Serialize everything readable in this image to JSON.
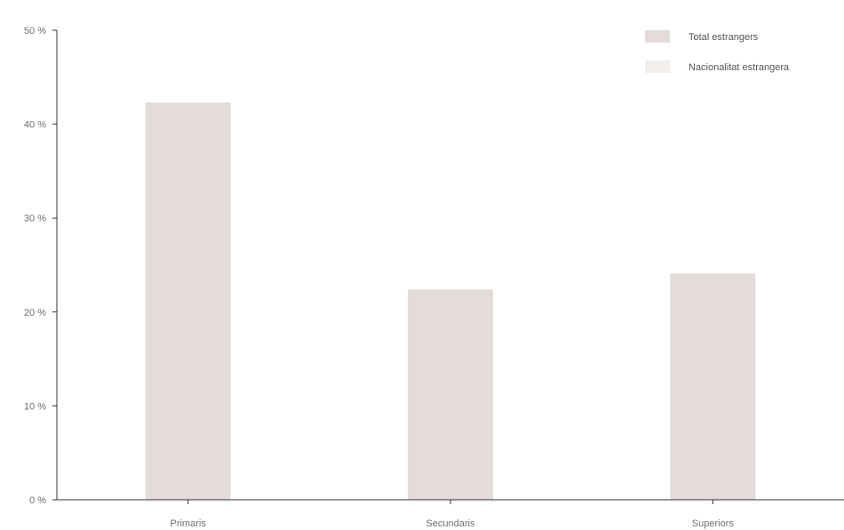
{
  "chart_data": {
    "type": "bar",
    "title": "",
    "xlabel": "",
    "ylabel": "",
    "categories": [
      "Primaris",
      "Secundaris",
      "Superiors"
    ],
    "series": [
      {
        "name": "Total estrangers",
        "values": [
          42.3,
          22.4,
          24.1
        ],
        "color": "#e3dcd9"
      },
      {
        "name": "Nacionalitat estrangera",
        "values": [
          null,
          null,
          null
        ],
        "color": "#f3eeec"
      }
    ],
    "ylim": [
      0,
      50
    ],
    "yticks": [
      0,
      10,
      20,
      30,
      40,
      50
    ],
    "ytick_labels": [
      "0 %",
      "10 %",
      "20 %",
      "30 %",
      "40 %",
      "50 %"
    ],
    "grid": false,
    "legend_position": "top-right"
  }
}
